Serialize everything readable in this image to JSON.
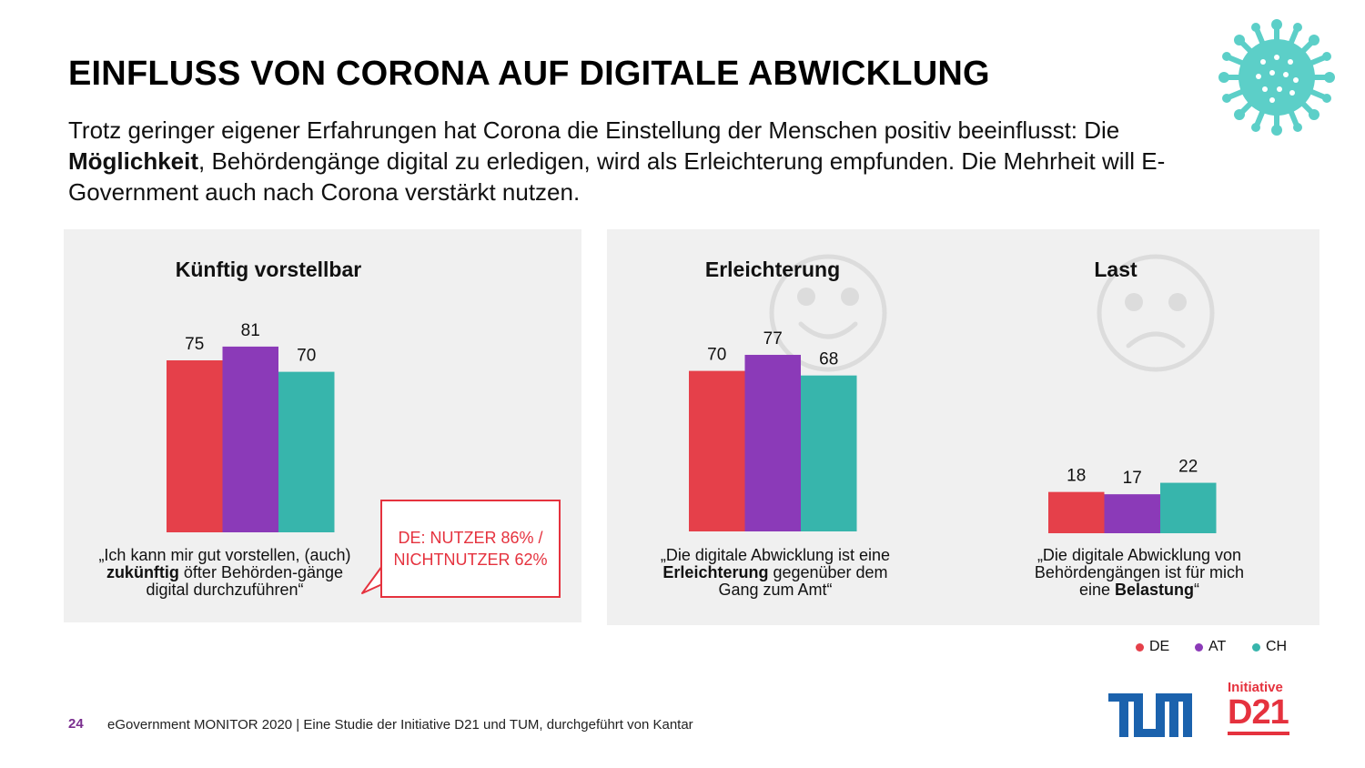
{
  "header": {
    "title": "EINFLUSS VON CORONA AUF DIGITALE ABWICKLUNG",
    "subtitle_part1": "Trotz geringer eigener Erfahrungen hat Corona die Einstellung der Menschen positiv beeinflusst: Die ",
    "subtitle_bold": "Möglichkeit",
    "subtitle_part2": ", Behördengänge digital zu erledigen, wird als Erleichterung empfunden. Die Mehrheit will E-Government auch nach Corona verstärkt nutzen."
  },
  "colors": {
    "DE": "#e5404a",
    "AT": "#8b3ab8",
    "CH": "#37b5ac",
    "panel": "#f0f0f0",
    "callout": "#e5323e"
  },
  "callout": {
    "line1": "DE: NUTZER 86% /",
    "line2": "NICHTNUTZER 62%"
  },
  "captions": {
    "kuenftig": {
      "pre": "„Ich kann mir gut vorstellen, (auch) ",
      "bold": "zukünftig",
      "post": " öfter Behörden-gänge digital durchzuführen“"
    },
    "erleichterung": {
      "pre": "„Die digitale Abwicklung ist eine ",
      "bold": "Erleichterung",
      "post": " gegenüber dem Gang zum Amt“"
    },
    "last": {
      "pre": "„Die digitale Abwicklung von Behördengängen ist für mich eine ",
      "bold": "Belastung",
      "post": "“"
    }
  },
  "legend": [
    "DE",
    "AT",
    "CH"
  ],
  "icons": {
    "virus": "virus-icon",
    "happy": "happy-face-icon",
    "sad": "sad-face-icon"
  },
  "footer": {
    "page": "24",
    "source": "eGovernment MONITOR 2020 | Eine Studie der Initiative D21 und TUM, durchgeführt von Kantar",
    "logo_d21_small": "Initiative",
    "logo_d21_big": "D21"
  },
  "chart_data": [
    {
      "type": "bar",
      "title": "Künftig vorstellbar",
      "categories": [
        "DE",
        "AT",
        "CH"
      ],
      "values": [
        75,
        81,
        70
      ]
    },
    {
      "type": "bar",
      "title": "Erleichterung",
      "categories": [
        "DE",
        "AT",
        "CH"
      ],
      "values": [
        70,
        77,
        68
      ]
    },
    {
      "type": "bar",
      "title": "Last",
      "categories": [
        "DE",
        "AT",
        "CH"
      ],
      "values": [
        18,
        17,
        22
      ]
    }
  ]
}
